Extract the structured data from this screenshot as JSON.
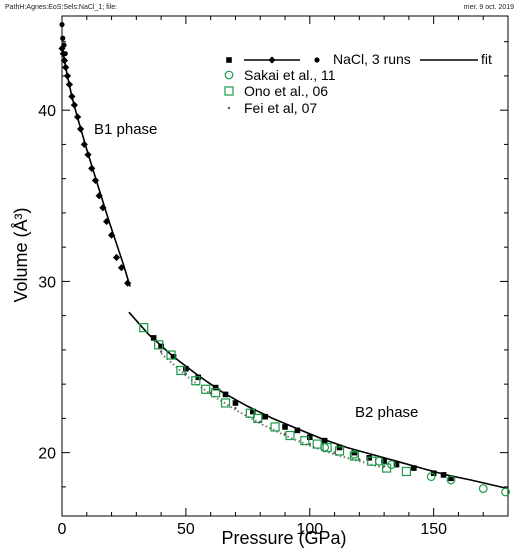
{
  "header": {
    "left": "PathH:Agnes:EoS:Sels:NaCl_1; file:",
    "right": "mer. 9 oct. 2019"
  },
  "chart_data": {
    "type": "scatter",
    "title": "",
    "xlabel": "Pressure (GPa)",
    "ylabel": "Volume (Å³)",
    "xlim": [
      0,
      180
    ],
    "ylim": [
      16.3,
      45.5
    ],
    "xticks": [
      0,
      50,
      100,
      150
    ],
    "yticks": [
      20,
      30,
      40
    ],
    "grid": false,
    "legend_position": "top-right",
    "legend": {
      "row1": "NaCl, 3 runs",
      "row1_fit": "fit",
      "row2": "Sakai et al., 11",
      "row3": "Ono et al., 06",
      "row4": "Fei et al, 07"
    },
    "annotations": [
      {
        "text": "B1 phase",
        "x": 13,
        "y": 38.3
      },
      {
        "text": "B2 phase",
        "x": 122,
        "y": 21.2
      }
    ],
    "colors": {
      "nacl": "#000000",
      "sakai": "#1b9a4a",
      "ono": "#1b9a4a",
      "fei": "#555555"
    },
    "series": [
      {
        "name": "NaCl, 3 runs",
        "marker": "diamond",
        "x": [
          0,
          0.5,
          1,
          1.5,
          2.2,
          3,
          4,
          5,
          6.3,
          7.5,
          9,
          10.5,
          12,
          13.5,
          15,
          16.5,
          18,
          20,
          22,
          24,
          26.5
        ],
        "y": [
          43.6,
          43.3,
          42.9,
          42.5,
          42.0,
          41.5,
          40.8,
          40.3,
          39.6,
          38.9,
          38.0,
          37.4,
          36.6,
          35.9,
          35.0,
          34.3,
          33.5,
          32.7,
          31.4,
          30.8,
          29.9
        ]
      },
      {
        "name": "NaCl, 3 runs",
        "marker": "dot",
        "x": [
          0,
          0.3,
          0.8,
          1.3
        ],
        "y": [
          45.0,
          44.2,
          43.8,
          43.3
        ]
      },
      {
        "name": "NaCl, 3 runs",
        "marker": "square",
        "x": [
          37,
          40,
          45,
          50,
          55,
          62,
          66,
          70,
          77,
          82,
          90,
          95,
          100,
          106,
          112,
          118,
          124,
          130,
          135,
          142,
          150,
          154,
          157
        ],
        "y": [
          26.7,
          26.2,
          25.6,
          24.9,
          24.4,
          23.8,
          23.4,
          22.9,
          22.4,
          22.1,
          21.5,
          21.3,
          20.9,
          20.7,
          20.3,
          20.0,
          19.7,
          19.5,
          19.3,
          19.1,
          18.8,
          18.7,
          18.5
        ]
      },
      {
        "name": "Sakai et al., 11",
        "marker": "circle",
        "x": [
          106,
          118,
          128,
          133,
          149,
          157,
          170,
          179
        ],
        "y": [
          20.3,
          19.9,
          19.5,
          19.3,
          18.6,
          18.4,
          17.9,
          17.7
        ]
      },
      {
        "name": "Ono et al., 06",
        "marker": "square-open",
        "x": [
          33,
          39,
          44,
          48,
          54,
          58,
          62,
          66,
          76,
          79,
          86,
          92,
          98,
          103,
          107,
          112,
          118,
          125,
          131,
          139
        ],
        "y": [
          27.3,
          26.3,
          25.7,
          24.8,
          24.2,
          23.7,
          23.5,
          22.9,
          22.3,
          22.0,
          21.5,
          21.0,
          20.7,
          20.5,
          20.3,
          20.1,
          19.8,
          19.5,
          19.1,
          18.9
        ]
      },
      {
        "name": "Fei et al, 07",
        "marker": "small-dot",
        "x": [
          40,
          50,
          60,
          70,
          80,
          90,
          100,
          110,
          120,
          130
        ],
        "y": [
          25.9,
          24.6,
          23.5,
          22.6,
          21.8,
          21.1,
          20.5,
          20.0,
          19.6,
          19.2
        ]
      }
    ],
    "fit_b1": {
      "x": [
        0,
        1,
        2,
        4,
        6,
        8,
        10,
        13,
        16,
        19,
        22,
        25,
        27.5
      ],
      "y": [
        43.7,
        42.9,
        42.1,
        40.8,
        39.7,
        38.7,
        37.7,
        36.3,
        34.9,
        33.5,
        32.2,
        30.9,
        29.7
      ]
    },
    "fit_b2": {
      "x": [
        27,
        35,
        45,
        55,
        65,
        75,
        85,
        95,
        105,
        115,
        125,
        135,
        145,
        155,
        165,
        180
      ],
      "y": [
        28.2,
        26.9,
        25.6,
        24.5,
        23.5,
        22.7,
        22.0,
        21.4,
        20.8,
        20.3,
        19.9,
        19.5,
        19.1,
        18.7,
        18.4,
        17.9
      ]
    },
    "fei_curve": {
      "x": [
        40,
        50,
        60,
        70,
        80,
        90,
        100,
        110,
        120,
        130
      ],
      "y": [
        25.8,
        24.5,
        23.4,
        22.5,
        21.7,
        21.0,
        20.4,
        19.9,
        19.5,
        19.1
      ]
    }
  }
}
